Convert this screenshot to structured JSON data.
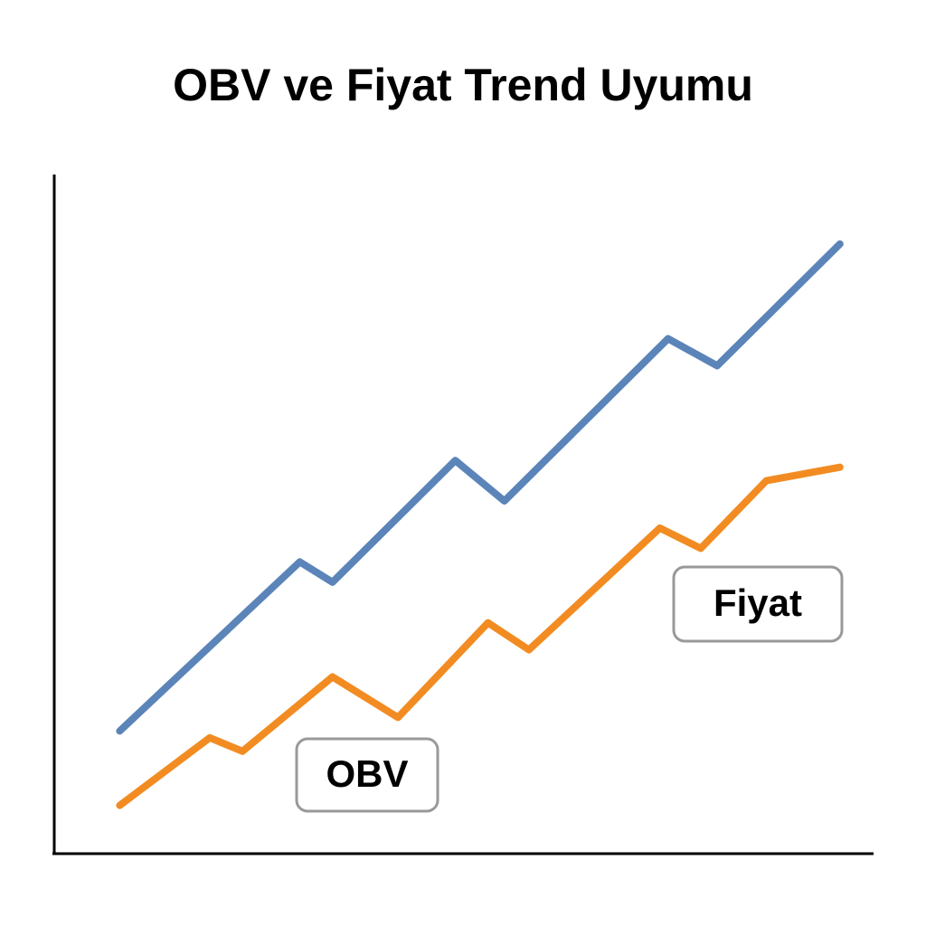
{
  "chart_data": {
    "type": "line",
    "title": "OBV ve Fiyat Trend Uyumu",
    "xlim": [
      0,
      100
    ],
    "ylim": [
      0,
      100
    ],
    "series": [
      {
        "name": "Fiyat",
        "color": "#5b84b9",
        "x": [
          8,
          30,
          34,
          49,
          55,
          75,
          81,
          96
        ],
        "values": [
          18,
          43,
          40,
          58,
          52,
          76,
          72,
          90
        ]
      },
      {
        "name": "OBV",
        "color": "#f28c22",
        "x": [
          8,
          19,
          23,
          34,
          42,
          53,
          58,
          74,
          79,
          87,
          96
        ],
        "values": [
          7,
          17,
          15,
          26,
          20,
          34,
          30,
          48,
          45,
          55,
          57
        ]
      }
    ]
  }
}
